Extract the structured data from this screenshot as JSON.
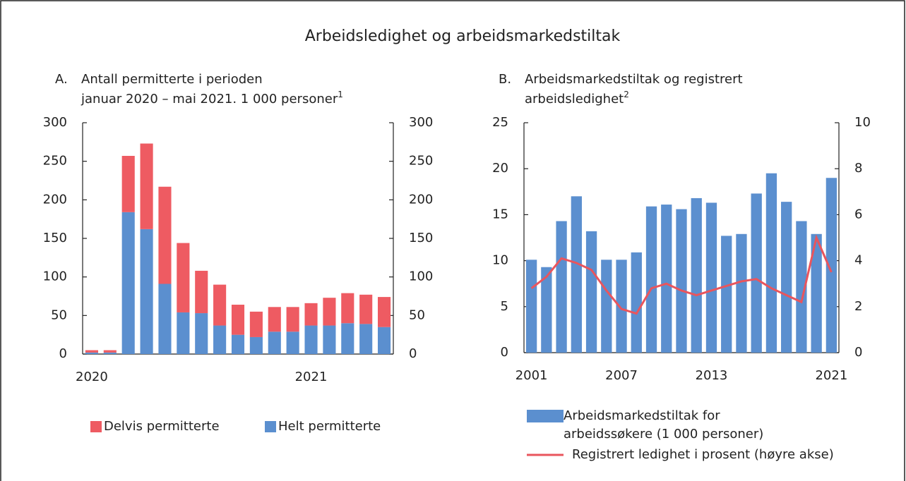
{
  "title": "Arbeidsledighet og arbeidsmarkedstiltak",
  "chart_data": [
    {
      "type": "bar",
      "stacked": true,
      "label": "A.",
      "title": [
        "Antall permitterte i perioden",
        "januar 2020 – mai 2021. 1 000 personer"
      ],
      "note_ref": "1",
      "categories": [
        "2020",
        null,
        null,
        null,
        null,
        null,
        null,
        null,
        null,
        null,
        null,
        null,
        "2021",
        null,
        null,
        null,
        null
      ],
      "series": [
        {
          "name": "Helt permitterte",
          "color": "#5b8fcf",
          "values": [
            2,
            2,
            184,
            162,
            91,
            54,
            53,
            37,
            25,
            22,
            29,
            29,
            37,
            37,
            40,
            39,
            35
          ]
        },
        {
          "name": "Delvis permitterte",
          "color": "#ee5b62",
          "values": [
            3,
            3,
            73,
            111,
            126,
            90,
            55,
            53,
            39,
            33,
            32,
            32,
            29,
            36,
            39,
            38,
            39
          ]
        }
      ],
      "ylim": [
        0,
        300
      ],
      "yticks": [
        0,
        50,
        100,
        150,
        200,
        250,
        300
      ],
      "y2lim": [
        0,
        300
      ],
      "y2ticks": [
        0,
        50,
        100,
        150,
        200,
        250,
        300
      ],
      "legend": "bottom"
    },
    {
      "type": "combo",
      "label": "B.",
      "title": [
        "Arbeidsmarkedstiltak og registrert",
        "arbeidsledighet"
      ],
      "note_ref": "2",
      "categories": [
        "2001",
        null,
        null,
        null,
        null,
        null,
        "2007",
        null,
        null,
        null,
        null,
        null,
        "2013",
        null,
        null,
        null,
        null,
        null,
        null,
        null,
        "2021"
      ],
      "series": [
        {
          "name": "Arbeidsmarkedstiltak for arbeidssøkere (1 000 personer) venstre akse",
          "type": "bar",
          "color": "#5b8fcf",
          "values": [
            10.1,
            9.3,
            14.3,
            17.0,
            13.2,
            10.1,
            10.1,
            10.9,
            15.9,
            16.1,
            15.6,
            16.8,
            16.3,
            12.7,
            12.9,
            17.3,
            19.5,
            16.4,
            14.3,
            12.9,
            19.0
          ]
        },
        {
          "name": "Registrert ledighet i prosent (høyre akse)",
          "type": "line",
          "axis": "y2",
          "color": "#e9555d",
          "values": [
            2.8,
            3.3,
            4.1,
            3.9,
            3.6,
            2.7,
            1.9,
            1.7,
            2.8,
            3.0,
            2.7,
            2.5,
            2.7,
            2.9,
            3.1,
            3.2,
            2.8,
            2.5,
            2.2,
            5.0,
            3.5
          ]
        }
      ],
      "ylim": [
        0,
        25
      ],
      "yticks": [
        0,
        5,
        10,
        15,
        20,
        25
      ],
      "y2lim": [
        0,
        10
      ],
      "y2ticks": [
        0,
        2,
        4,
        6,
        8,
        10
      ],
      "legend": "bottom"
    }
  ]
}
